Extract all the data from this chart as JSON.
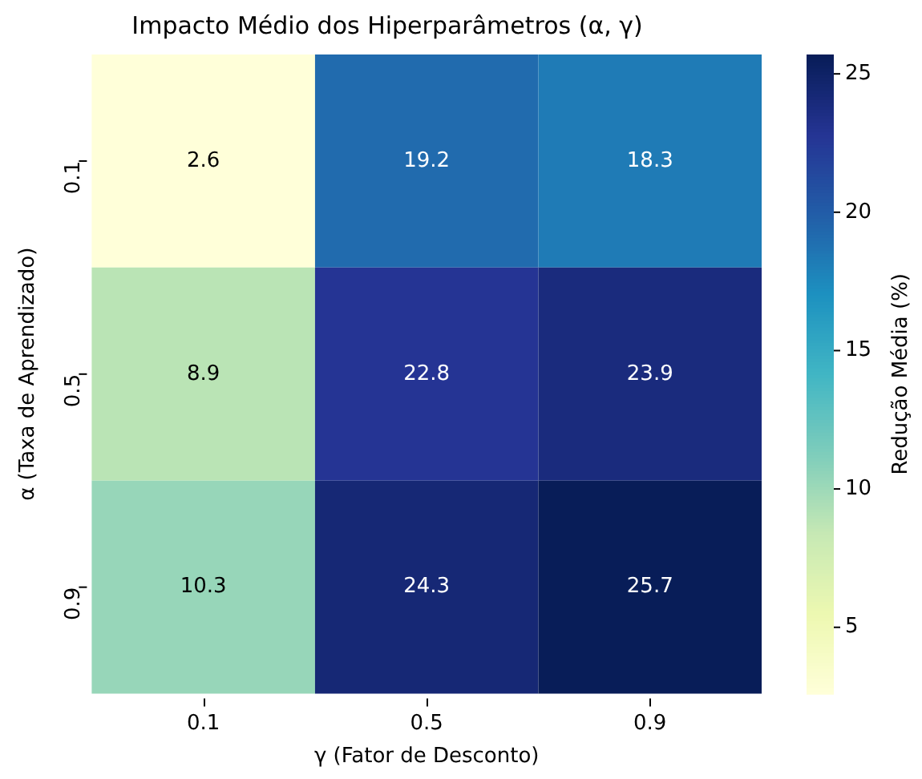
{
  "chart_data": {
    "type": "heatmap",
    "title": "Impacto Médio dos Hiperparâmetros (α, γ)",
    "xlabel": "γ (Fator de Desconto)",
    "ylabel": "α (Taxa de Aprendizado)",
    "clabel": "Redução Média (%)",
    "categories": [
      "0.1",
      "0.5",
      "0.9"
    ],
    "y_categories": [
      "0.1",
      "0.5",
      "0.9"
    ],
    "cells": [
      [
        2.6,
        19.2,
        18.3
      ],
      [
        8.9,
        22.8,
        23.9
      ],
      [
        10.3,
        24.3,
        25.7
      ]
    ],
    "data_labels": true,
    "clim": [
      2.6,
      25.7
    ],
    "cticks": [
      5,
      10,
      15,
      20,
      25
    ]
  }
}
